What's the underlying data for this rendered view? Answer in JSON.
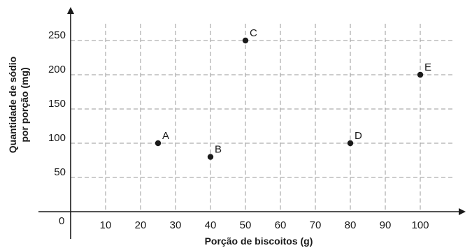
{
  "chart_data": {
    "type": "scatter",
    "title": "",
    "xlabel": "Porção de biscoitos (g)",
    "ylabel_lines": [
      "Quantidade de sódio",
      "por porção (mg)"
    ],
    "origin_label": "0",
    "xlim": [
      0,
      100
    ],
    "ylim": [
      0,
      250
    ],
    "x_ticks": [
      10,
      20,
      30,
      40,
      50,
      60,
      70,
      80,
      90,
      100
    ],
    "y_ticks": [
      50,
      100,
      150,
      200,
      250
    ],
    "grid": true,
    "points": [
      {
        "label": "A",
        "x": 25,
        "y": 100
      },
      {
        "label": "B",
        "x": 40,
        "y": 80
      },
      {
        "label": "C",
        "x": 50,
        "y": 250
      },
      {
        "label": "D",
        "x": 80,
        "y": 100
      },
      {
        "label": "E",
        "x": 100,
        "y": 200
      }
    ]
  }
}
